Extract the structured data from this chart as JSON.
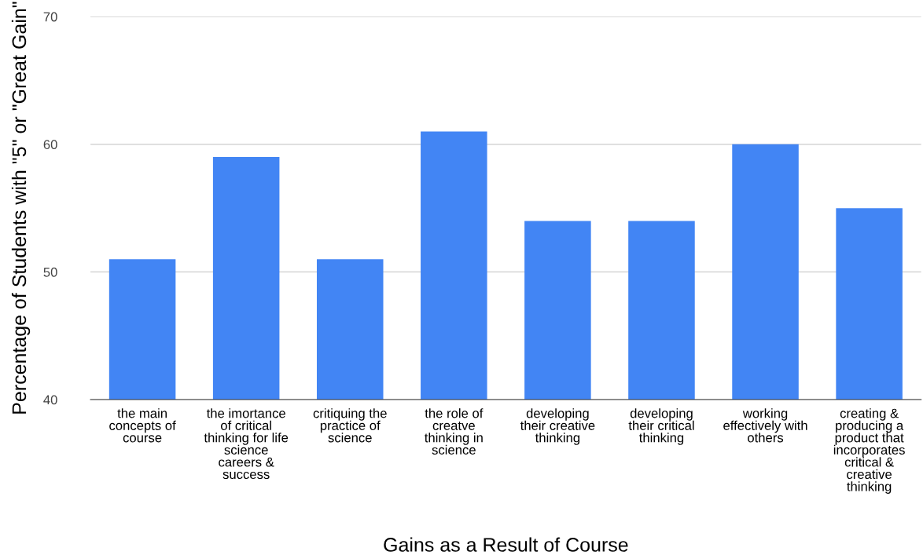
{
  "chart_data": {
    "type": "bar",
    "categories": [
      "the main\nconcepts of\ncourse",
      "the imortance\nof critical\nthinking for life\nscience\ncareers &\nsuccess",
      "critiquing the\npractice of\nscience",
      "the role of\ncreatve\nthinking in\nscience",
      "developing\ntheir creative\nthinking",
      "developing\ntheir critical\nthinking",
      "working\neffectively with\nothers",
      "creating &\nproducing a\nproduct that\nincorporates\ncritical &\ncreative\nthinking"
    ],
    "values": [
      51,
      59,
      51,
      61,
      54,
      54,
      60,
      55
    ],
    "color": "#4285f4",
    "xlabel": "Gains as a Result of Course",
    "ylabel": "Percentage of Students with \"5\" or \"Great Gain\"",
    "ylim": [
      40,
      70
    ],
    "yticks": [
      40,
      50,
      60,
      70
    ],
    "grid": "y"
  }
}
